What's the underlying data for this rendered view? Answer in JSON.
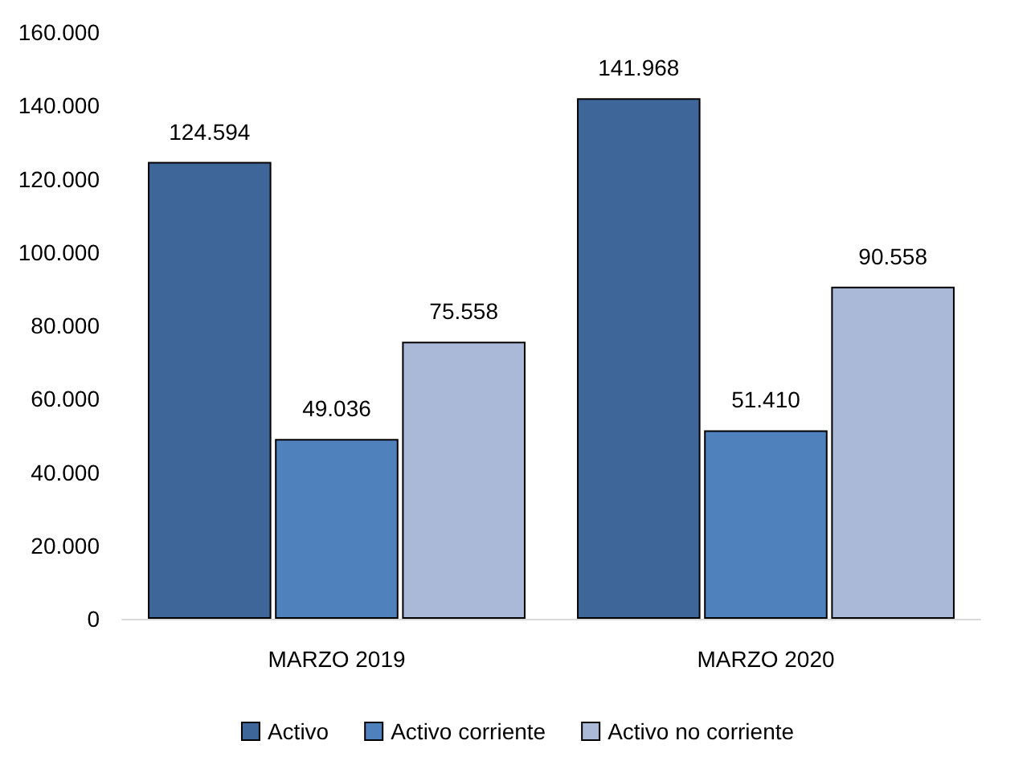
{
  "chart_data": {
    "type": "bar",
    "categories": [
      "MARZO 2019",
      "MARZO 2020"
    ],
    "series": [
      {
        "name": "Activo",
        "color": "#3f6698",
        "values": [
          124594,
          141968
        ],
        "value_labels": [
          "124.594",
          "141.968"
        ]
      },
      {
        "name": "Activo corriente",
        "color": "#4f81bd",
        "values": [
          49036,
          51410
        ],
        "value_labels": [
          "49.036",
          "51.410"
        ]
      },
      {
        "name": "Activo no corriente",
        "color": "#aab9d8",
        "values": [
          75558,
          90558
        ],
        "value_labels": [
          "75.558",
          "90.558"
        ]
      }
    ],
    "ylim": [
      0,
      160000
    ],
    "yticks": [
      {
        "value": 0,
        "label": "0"
      },
      {
        "value": 20000,
        "label": "20.000"
      },
      {
        "value": 40000,
        "label": "40.000"
      },
      {
        "value": 60000,
        "label": "60.000"
      },
      {
        "value": 80000,
        "label": "80.000"
      },
      {
        "value": 100000,
        "label": "100.000"
      },
      {
        "value": 120000,
        "label": "120.000"
      },
      {
        "value": 140000,
        "label": "140.000"
      },
      {
        "value": 160000,
        "label": "160.000"
      }
    ],
    "grid": false,
    "legend": "bottom"
  }
}
